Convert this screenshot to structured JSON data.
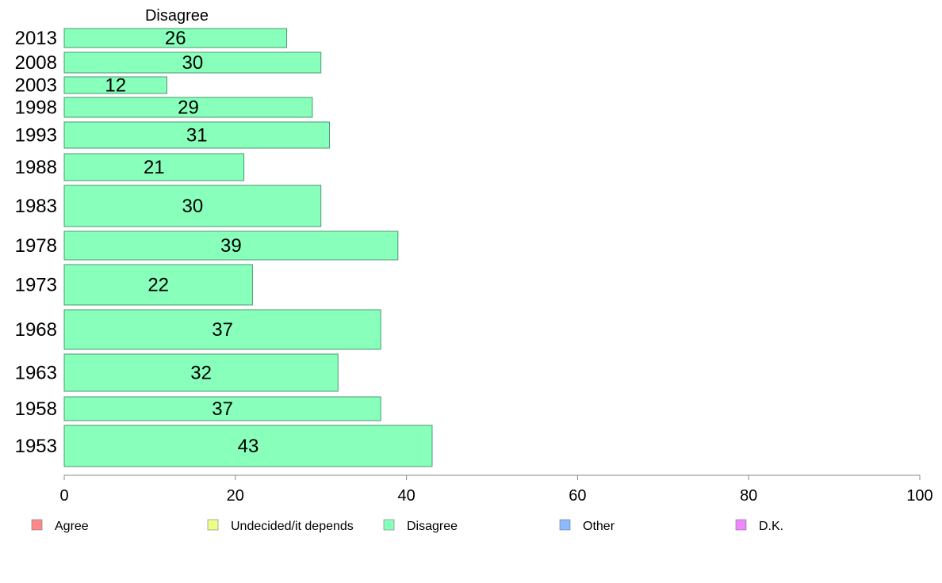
{
  "chart_data": {
    "type": "bar",
    "orientation": "horizontal",
    "title": "Disagree",
    "categories": [
      "2013",
      "2008",
      "2003",
      "1998",
      "1993",
      "1988",
      "1983",
      "1978",
      "1973",
      "1968",
      "1963",
      "1958",
      "1953"
    ],
    "series": [
      {
        "name": "Disagree",
        "color": "#88ffbb",
        "values": [
          26,
          30,
          12,
          29,
          31,
          21,
          30,
          39,
          22,
          37,
          32,
          37,
          43
        ],
        "labels": [
          "26",
          "30",
          "12",
          "29",
          "31",
          "21",
          "30",
          "39",
          "22",
          "37",
          "32",
          "37",
          "43"
        ]
      }
    ],
    "xlim": [
      0,
      100
    ],
    "xticks": [
      "0",
      "20",
      "40",
      "60",
      "80",
      "100"
    ],
    "grid": false,
    "legend": {
      "placement": "bottom",
      "items": [
        {
          "label": "Agree",
          "color": "#ff8888"
        },
        {
          "label": "Undecided/it depends",
          "color": "#eeff88"
        },
        {
          "label": "Disagree",
          "color": "#88ffbb"
        },
        {
          "label": "Other",
          "color": "#88bbff"
        },
        {
          "label": "D.K.",
          "color": "#ee88ff"
        }
      ]
    }
  }
}
